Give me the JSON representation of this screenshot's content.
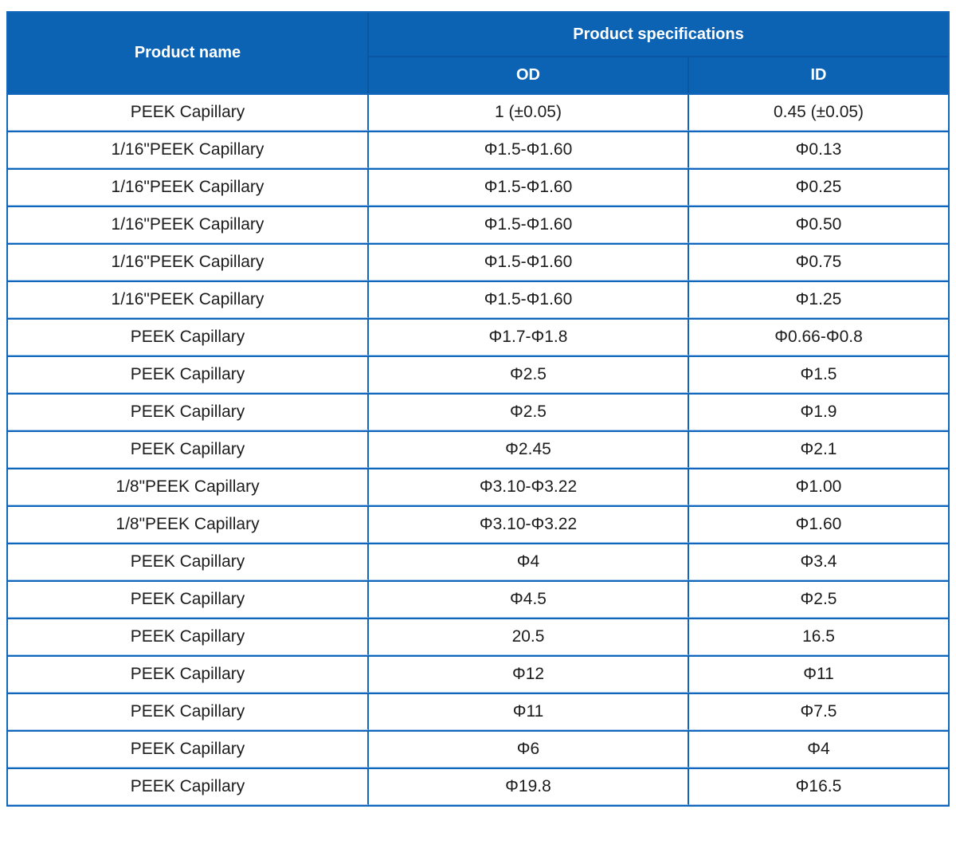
{
  "theme": {
    "header_bg": "#0d63b3",
    "header_divider": "#0a56a4",
    "grid": "#0f66bb",
    "grid_light": "#abc9ea",
    "header_text": "#ffffff",
    "body_text": "#1c1c1c",
    "page_bg": "#ffffff"
  },
  "chart_data": {
    "type": "table",
    "title": "",
    "columns": [
      "Product name",
      "OD",
      "ID"
    ],
    "column_groups": [
      {
        "label": "Product specifications",
        "columns": [
          "OD",
          "ID"
        ]
      }
    ],
    "header": {
      "product_name": "Product name",
      "specifications_group": "Product specifications",
      "od": "OD",
      "id": "ID"
    },
    "rows": [
      [
        "PEEK Capillary",
        "1 (±0.05)",
        "0.45 (±0.05)"
      ],
      [
        "1/16\"PEEK Capillary",
        "Φ1.5-Φ1.60",
        "Φ0.13"
      ],
      [
        "1/16\"PEEK Capillary",
        "Φ1.5-Φ1.60",
        "Φ0.25"
      ],
      [
        "1/16\"PEEK Capillary",
        "Φ1.5-Φ1.60",
        "Φ0.50"
      ],
      [
        "1/16\"PEEK Capillary",
        "Φ1.5-Φ1.60",
        "Φ0.75"
      ],
      [
        "1/16\"PEEK Capillary",
        "Φ1.5-Φ1.60",
        "Φ1.25"
      ],
      [
        "PEEK Capillary",
        "Φ1.7-Φ1.8",
        "Φ0.66-Φ0.8"
      ],
      [
        "PEEK Capillary",
        "Φ2.5",
        "Φ1.5"
      ],
      [
        "PEEK Capillary",
        "Φ2.5",
        "Φ1.9"
      ],
      [
        "PEEK Capillary",
        "Φ2.45",
        "Φ2.1"
      ],
      [
        "1/8\"PEEK Capillary",
        "Φ3.10-Φ3.22",
        "Φ1.00"
      ],
      [
        "1/8\"PEEK Capillary",
        "Φ3.10-Φ3.22",
        "Φ1.60"
      ],
      [
        "PEEK Capillary",
        "Φ4",
        "Φ3.4"
      ],
      [
        "PEEK Capillary",
        "Φ4.5",
        "Φ2.5"
      ],
      [
        "PEEK Capillary",
        "20.5",
        "16.5"
      ],
      [
        "PEEK Capillary",
        "Φ12",
        "Φ11"
      ],
      [
        "PEEK Capillary",
        "Φ11",
        "Φ7.5"
      ],
      [
        "PEEK Capillary",
        "Φ6",
        "Φ4"
      ],
      [
        "PEEK Capillary",
        "Φ19.8",
        "Φ16.5"
      ]
    ]
  }
}
